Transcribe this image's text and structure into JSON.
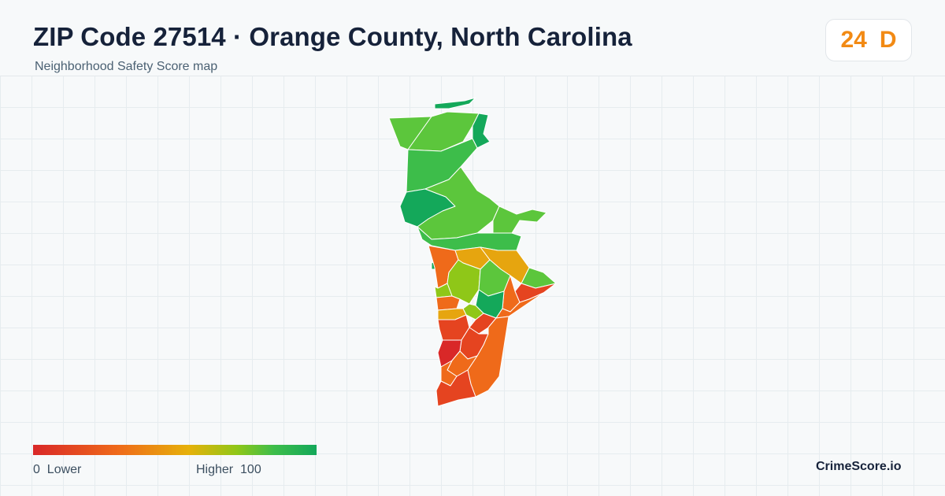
{
  "header": {
    "title": "ZIP Code 27514 · Orange County, North Carolina",
    "subtitle": "Neighborhood Safety Score map"
  },
  "score": {
    "value": "24",
    "grade": "D",
    "color": "#f28a14"
  },
  "legend": {
    "low_value": "0",
    "low_label": "Lower",
    "high_label": "Higher",
    "high_value": "100",
    "colors": [
      "#d92828",
      "#ef6a1a",
      "#e6b10a",
      "#8fc718",
      "#3dbd4a",
      "#14a85a"
    ]
  },
  "brand": {
    "name": "CrimeScore.io"
  },
  "map": {
    "region_colors": {
      "dark_green": "#14a85a",
      "green": "#3dbd4a",
      "light_green": "#5cc63c",
      "yellow_green": "#8fc718",
      "amber": "#e6a50f",
      "orange": "#ef6a1a",
      "red_orange": "#e54420",
      "red": "#d92828"
    }
  }
}
